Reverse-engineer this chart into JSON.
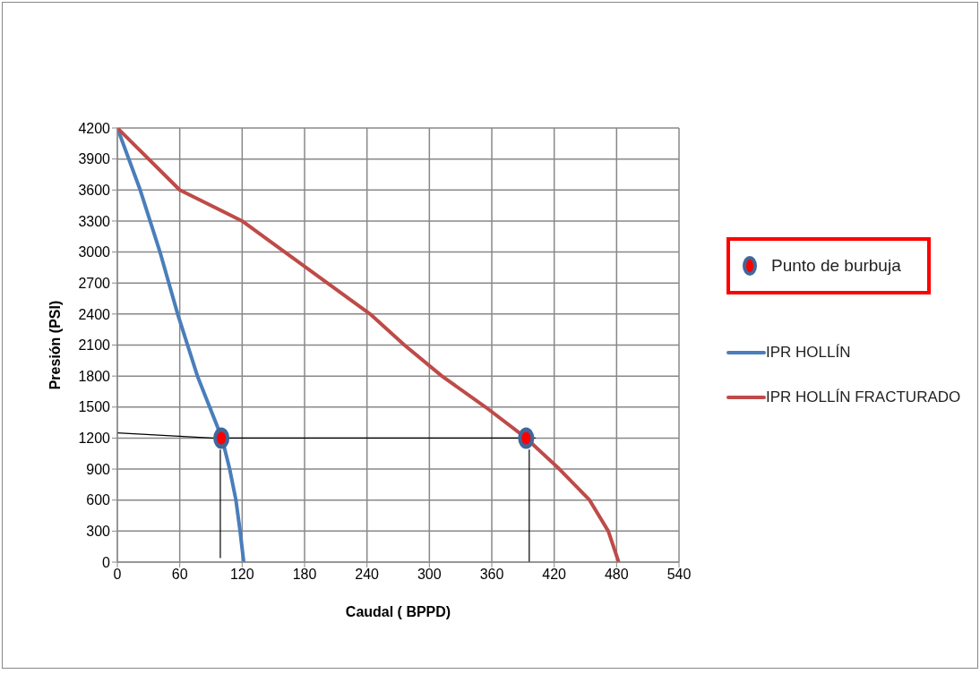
{
  "chart_data": {
    "type": "line",
    "xlabel": "Caudal ( BPPD)",
    "ylabel": "Presión (PSI)",
    "xlim": [
      0,
      540
    ],
    "xticks": [
      0,
      60,
      120,
      180,
      240,
      300,
      360,
      420,
      480,
      540
    ],
    "ylim": [
      0,
      4200
    ],
    "yticks": [
      0,
      300,
      600,
      900,
      1200,
      1500,
      1800,
      2100,
      2400,
      2700,
      3000,
      3300,
      3600,
      3900,
      4200
    ],
    "grid": true,
    "legend": "right",
    "line_style": "solid",
    "series": [
      {
        "name": "Punto de burbuja",
        "type": "scatter",
        "marker": "circle",
        "color": "#ff0000",
        "x": [
          100,
          393
        ],
        "values": [
          1200,
          1200
        ]
      },
      {
        "color": "#000000",
        "x": [
          0,
          91,
          402
        ],
        "values": [
          1250,
          1200,
          1200
        ]
      },
      {
        "color": "#000000",
        "x": [
          99,
          99
        ],
        "values": [
          1090,
          40
        ]
      },
      {
        "color": "#000000",
        "x": [
          396,
          396
        ],
        "values": [
          1090,
          0
        ]
      },
      {
        "name": "IPR HOLLÍN",
        "color": "#4a7ebb",
        "x": [
          0,
          22,
          41,
          58,
          77,
          100.6,
          108,
          114,
          118,
          121.5
        ],
        "values": [
          4200,
          3600,
          3000,
          2400,
          1800,
          1200,
          900,
          600,
          300,
          0
        ]
      },
      {
        "name": "IPR HOLLÍN FRACTURADO",
        "color": "#be4b48",
        "x": [
          0,
          60,
          120,
          161,
          243,
          276,
          312,
          354,
          393,
          425,
          454,
          472,
          482
        ],
        "values": [
          4200,
          3600,
          3300,
          3000,
          2400,
          2100,
          1800,
          1500,
          1200,
          900,
          600,
          300,
          0
        ]
      }
    ]
  }
}
